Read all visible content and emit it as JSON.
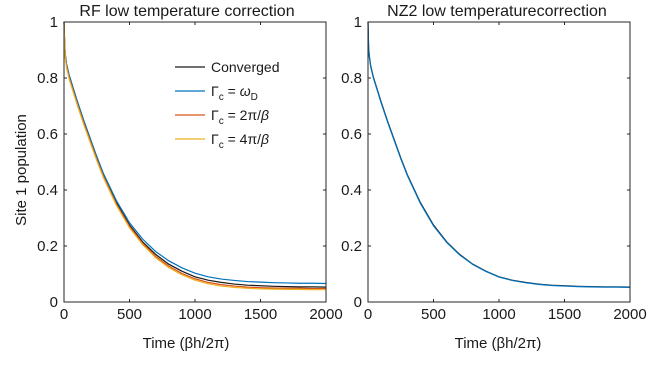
{
  "chart_data": [
    {
      "type": "line",
      "title": "RF low temperature correction",
      "xlabel": "Time (βh/2π)",
      "ylabel": "Site 1 population",
      "xlim": [
        0,
        2000
      ],
      "ylim": [
        0,
        1
      ],
      "xticks": [
        0,
        500,
        1000,
        1500,
        2000
      ],
      "yticks": [
        0,
        0.2,
        0.4,
        0.6,
        0.8,
        1
      ],
      "grid": false,
      "legend": "top-right",
      "series": [
        {
          "name": "Converged",
          "color": "#1a1a1a",
          "x": [
            0,
            5,
            10,
            20,
            40,
            60,
            80,
            100,
            150,
            200,
            250,
            300,
            400,
            500,
            600,
            700,
            800,
            900,
            1000,
            1100,
            1200,
            1300,
            1400,
            1500,
            1600,
            1700,
            1800,
            1900,
            2000
          ],
          "y": [
            1.0,
            0.92,
            0.88,
            0.845,
            0.805,
            0.775,
            0.745,
            0.715,
            0.645,
            0.58,
            0.515,
            0.455,
            0.355,
            0.275,
            0.215,
            0.17,
            0.135,
            0.11,
            0.09,
            0.078,
            0.07,
            0.064,
            0.06,
            0.058,
            0.056,
            0.055,
            0.054,
            0.054,
            0.053
          ]
        },
        {
          "name": "Γc = ωD",
          "color": "#0072bd",
          "x": [
            0,
            5,
            10,
            20,
            40,
            60,
            80,
            100,
            150,
            200,
            250,
            300,
            400,
            500,
            600,
            700,
            800,
            900,
            1000,
            1100,
            1200,
            1300,
            1400,
            1500,
            1600,
            1700,
            1800,
            1900,
            2000
          ],
          "y": [
            1.0,
            0.925,
            0.885,
            0.85,
            0.81,
            0.78,
            0.75,
            0.72,
            0.65,
            0.585,
            0.52,
            0.46,
            0.362,
            0.283,
            0.225,
            0.18,
            0.147,
            0.122,
            0.103,
            0.09,
            0.082,
            0.077,
            0.073,
            0.071,
            0.069,
            0.068,
            0.067,
            0.067,
            0.066
          ]
        },
        {
          "name": "Γc = 2π/β",
          "color": "#d95319",
          "x": [
            0,
            5,
            10,
            20,
            40,
            60,
            80,
            100,
            150,
            200,
            250,
            300,
            400,
            500,
            600,
            700,
            800,
            900,
            1000,
            1100,
            1200,
            1300,
            1400,
            1500,
            1600,
            1700,
            1800,
            1900,
            2000
          ],
          "y": [
            1.0,
            0.92,
            0.875,
            0.84,
            0.8,
            0.77,
            0.74,
            0.71,
            0.64,
            0.575,
            0.51,
            0.45,
            0.35,
            0.27,
            0.21,
            0.163,
            0.128,
            0.102,
            0.083,
            0.07,
            0.062,
            0.057,
            0.053,
            0.051,
            0.05,
            0.049,
            0.049,
            0.048,
            0.048
          ]
        },
        {
          "name": "Γc = 4π/β",
          "color": "#edb120",
          "x": [
            0,
            5,
            10,
            20,
            40,
            60,
            80,
            100,
            150,
            200,
            250,
            300,
            400,
            500,
            600,
            700,
            800,
            900,
            1000,
            1100,
            1200,
            1300,
            1400,
            1500,
            1600,
            1700,
            1800,
            1900,
            2000
          ],
          "y": [
            1.0,
            0.915,
            0.87,
            0.835,
            0.795,
            0.765,
            0.735,
            0.705,
            0.635,
            0.57,
            0.505,
            0.445,
            0.345,
            0.265,
            0.205,
            0.158,
            0.123,
            0.097,
            0.078,
            0.065,
            0.057,
            0.052,
            0.049,
            0.047,
            0.046,
            0.045,
            0.045,
            0.044,
            0.044
          ]
        }
      ]
    },
    {
      "type": "line",
      "title": "NZ2 low temperaturecorrection",
      "xlabel": "Time (βh/2π)",
      "ylabel": "",
      "xlim": [
        0,
        2000
      ],
      "ylim": [
        0,
        1
      ],
      "xticks": [
        0,
        500,
        1000,
        1500,
        2000
      ],
      "yticks": [
        0,
        0.2,
        0.4,
        0.6,
        0.8,
        1
      ],
      "grid": false,
      "series": [
        {
          "color": "#1a1a1a",
          "x": [
            0,
            5,
            10,
            20,
            40,
            60,
            80,
            100,
            150,
            200,
            250,
            300,
            400,
            500,
            600,
            700,
            800,
            900,
            1000,
            1100,
            1200,
            1300,
            1400,
            1500,
            1600,
            1700,
            1800,
            1900,
            2000
          ],
          "y": [
            1.0,
            0.905,
            0.88,
            0.845,
            0.805,
            0.775,
            0.745,
            0.715,
            0.645,
            0.58,
            0.515,
            0.455,
            0.355,
            0.275,
            0.215,
            0.17,
            0.135,
            0.11,
            0.09,
            0.078,
            0.07,
            0.064,
            0.06,
            0.058,
            0.056,
            0.055,
            0.054,
            0.054,
            0.053
          ]
        },
        {
          "color": "#0072bd",
          "x": [
            0,
            5,
            10,
            20,
            40,
            60,
            80,
            100,
            150,
            200,
            250,
            300,
            400,
            500,
            600,
            700,
            800,
            900,
            1000,
            1100,
            1200,
            1300,
            1400,
            1500,
            1600,
            1700,
            1800,
            1900,
            2000
          ],
          "y": [
            1.0,
            0.9,
            0.875,
            0.842,
            0.802,
            0.772,
            0.742,
            0.712,
            0.642,
            0.577,
            0.512,
            0.452,
            0.352,
            0.272,
            0.213,
            0.168,
            0.134,
            0.109,
            0.089,
            0.077,
            0.069,
            0.063,
            0.059,
            0.057,
            0.055,
            0.054,
            0.053,
            0.053,
            0.052
          ]
        }
      ]
    }
  ]
}
